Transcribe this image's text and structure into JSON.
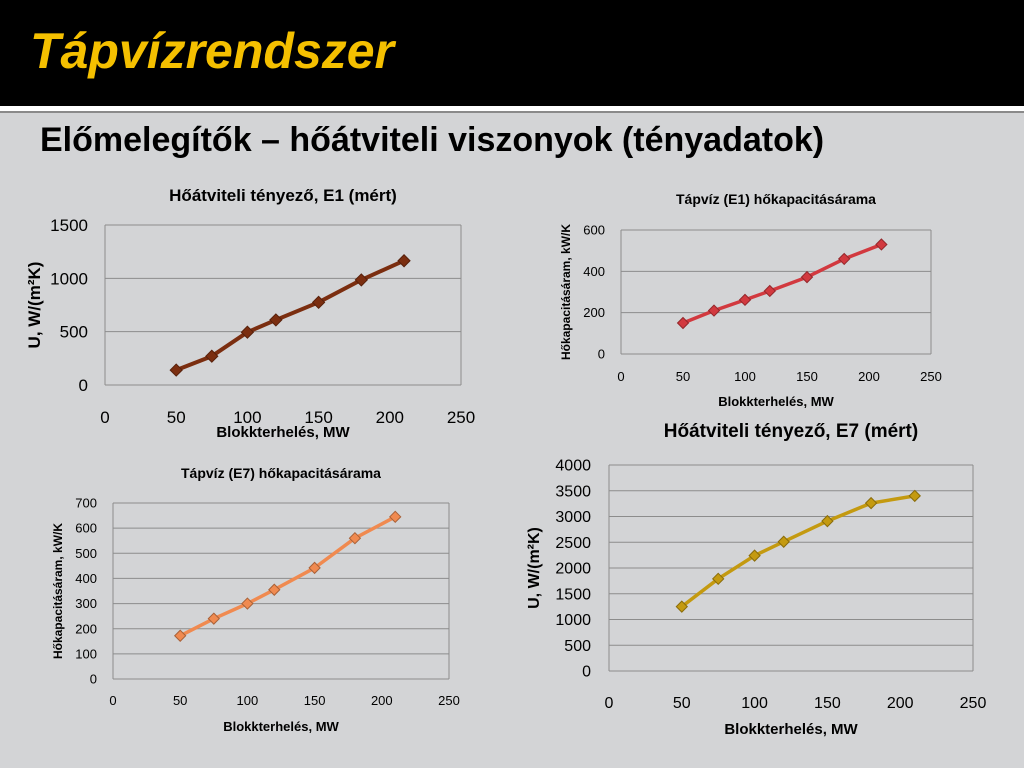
{
  "slide": {
    "title": "Tápvízrendszer",
    "subtitle": "Előmelegítők – hőátviteli viszonyok (tényadatok)",
    "title_color": "#f5c000"
  },
  "chart_data": [
    {
      "id": "e1_u",
      "type": "line",
      "title": "Hőátviteli tényező, E1 (mért)",
      "xlabel": "Blokkterhelés, MW",
      "ylabel": "U, W/(m²K)",
      "xlim": [
        0,
        250
      ],
      "ylim": [
        0,
        1500
      ],
      "xticks": [
        0,
        50,
        100,
        150,
        200,
        250
      ],
      "yticks": [
        0,
        500,
        1000,
        1500
      ],
      "grid": true,
      "legend": "none",
      "color": "#7b2e10",
      "marker": "diamond",
      "x": [
        50,
        75,
        100,
        120,
        150,
        180,
        210
      ],
      "y": [
        140,
        270,
        495,
        610,
        775,
        985,
        1165
      ]
    },
    {
      "id": "e1_cap",
      "type": "line",
      "title": "Tápvíz (E1) hőkapacitásárama",
      "xlabel": "Blokkterhelés, MW",
      "ylabel": "Hőkapacitásáram, kW/K",
      "xlim": [
        0,
        250
      ],
      "ylim": [
        0,
        600
      ],
      "xticks": [
        0,
        50,
        100,
        150,
        200,
        250
      ],
      "yticks": [
        0,
        200,
        400,
        600
      ],
      "grid": true,
      "legend": "none",
      "color": "#d2393f",
      "marker": "diamond",
      "x": [
        50,
        75,
        100,
        120,
        150,
        180,
        210
      ],
      "y": [
        150,
        210,
        262,
        305,
        372,
        460,
        530
      ]
    },
    {
      "id": "e7_cap",
      "type": "line",
      "title": "Tápvíz (E7) hőkapacitásárama",
      "xlabel": "Blokkterhelés, MW",
      "ylabel": "Hőkapacitásáram, kW/K",
      "xlim": [
        0,
        250
      ],
      "ylim": [
        0,
        700
      ],
      "xticks": [
        0,
        50,
        100,
        150,
        200,
        250
      ],
      "yticks": [
        0,
        100,
        200,
        300,
        400,
        500,
        600,
        700
      ],
      "grid": true,
      "legend": "none",
      "color": "#f08a50",
      "marker": "diamond",
      "x": [
        50,
        75,
        100,
        120,
        150,
        180,
        210
      ],
      "y": [
        172,
        240,
        300,
        355,
        442,
        560,
        645
      ]
    },
    {
      "id": "e7_u",
      "type": "line",
      "title": "Hőátviteli tényező, E7 (mért)",
      "xlabel": "Blokkterhelés, MW",
      "ylabel": "U, W/(m²K)",
      "xlim": [
        0,
        250
      ],
      "ylim": [
        0,
        4000
      ],
      "xticks": [
        0,
        50,
        100,
        150,
        200,
        250
      ],
      "yticks": [
        0,
        500,
        1000,
        1500,
        2000,
        2500,
        3000,
        3500,
        4000
      ],
      "grid": true,
      "legend": "none",
      "color": "#c49a10",
      "marker": "diamond",
      "x": [
        50,
        75,
        100,
        120,
        150,
        180,
        210
      ],
      "y": [
        1250,
        1790,
        2240,
        2510,
        2910,
        3260,
        3400
      ]
    }
  ]
}
